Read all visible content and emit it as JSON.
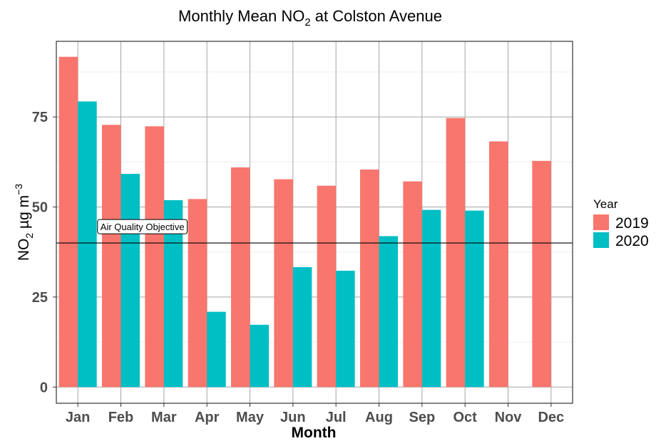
{
  "chart_data": {
    "type": "bar",
    "title": "Monthly Mean NO",
    "title_subscript": "2",
    "title_suffix": " at Colston Avenue",
    "xlabel": "Month",
    "ylabel_prefix": "NO",
    "ylabel_subscript": "2",
    "ylabel_unit": " µg m",
    "ylabel_superscript": "−3",
    "categories": [
      "Jan",
      "Feb",
      "Mar",
      "Apr",
      "May",
      "Jun",
      "Jul",
      "Aug",
      "Sep",
      "Oct",
      "Nov",
      "Dec"
    ],
    "ylim": [
      -4.5,
      96
    ],
    "yticks": [
      0,
      25,
      50,
      75
    ],
    "ytick_labels": [
      "0",
      "25",
      "50",
      "75"
    ],
    "grid": true,
    "legend": {
      "title": "Year",
      "placement": "right"
    },
    "series": [
      {
        "name": "2019",
        "color": "#F8766D",
        "values": [
          91.7,
          72.8,
          72.4,
          52.2,
          61.0,
          57.7,
          55.9,
          60.4,
          57.1,
          74.7,
          68.2,
          62.8
        ]
      },
      {
        "name": "2020",
        "color": "#00BFC4",
        "values": [
          79.3,
          59.2,
          51.9,
          20.9,
          17.3,
          33.3,
          32.3,
          41.9,
          49.2,
          49.0,
          null,
          null
        ]
      }
    ],
    "reference_line": {
      "value": 40,
      "label": "Air Quality Objective"
    }
  }
}
